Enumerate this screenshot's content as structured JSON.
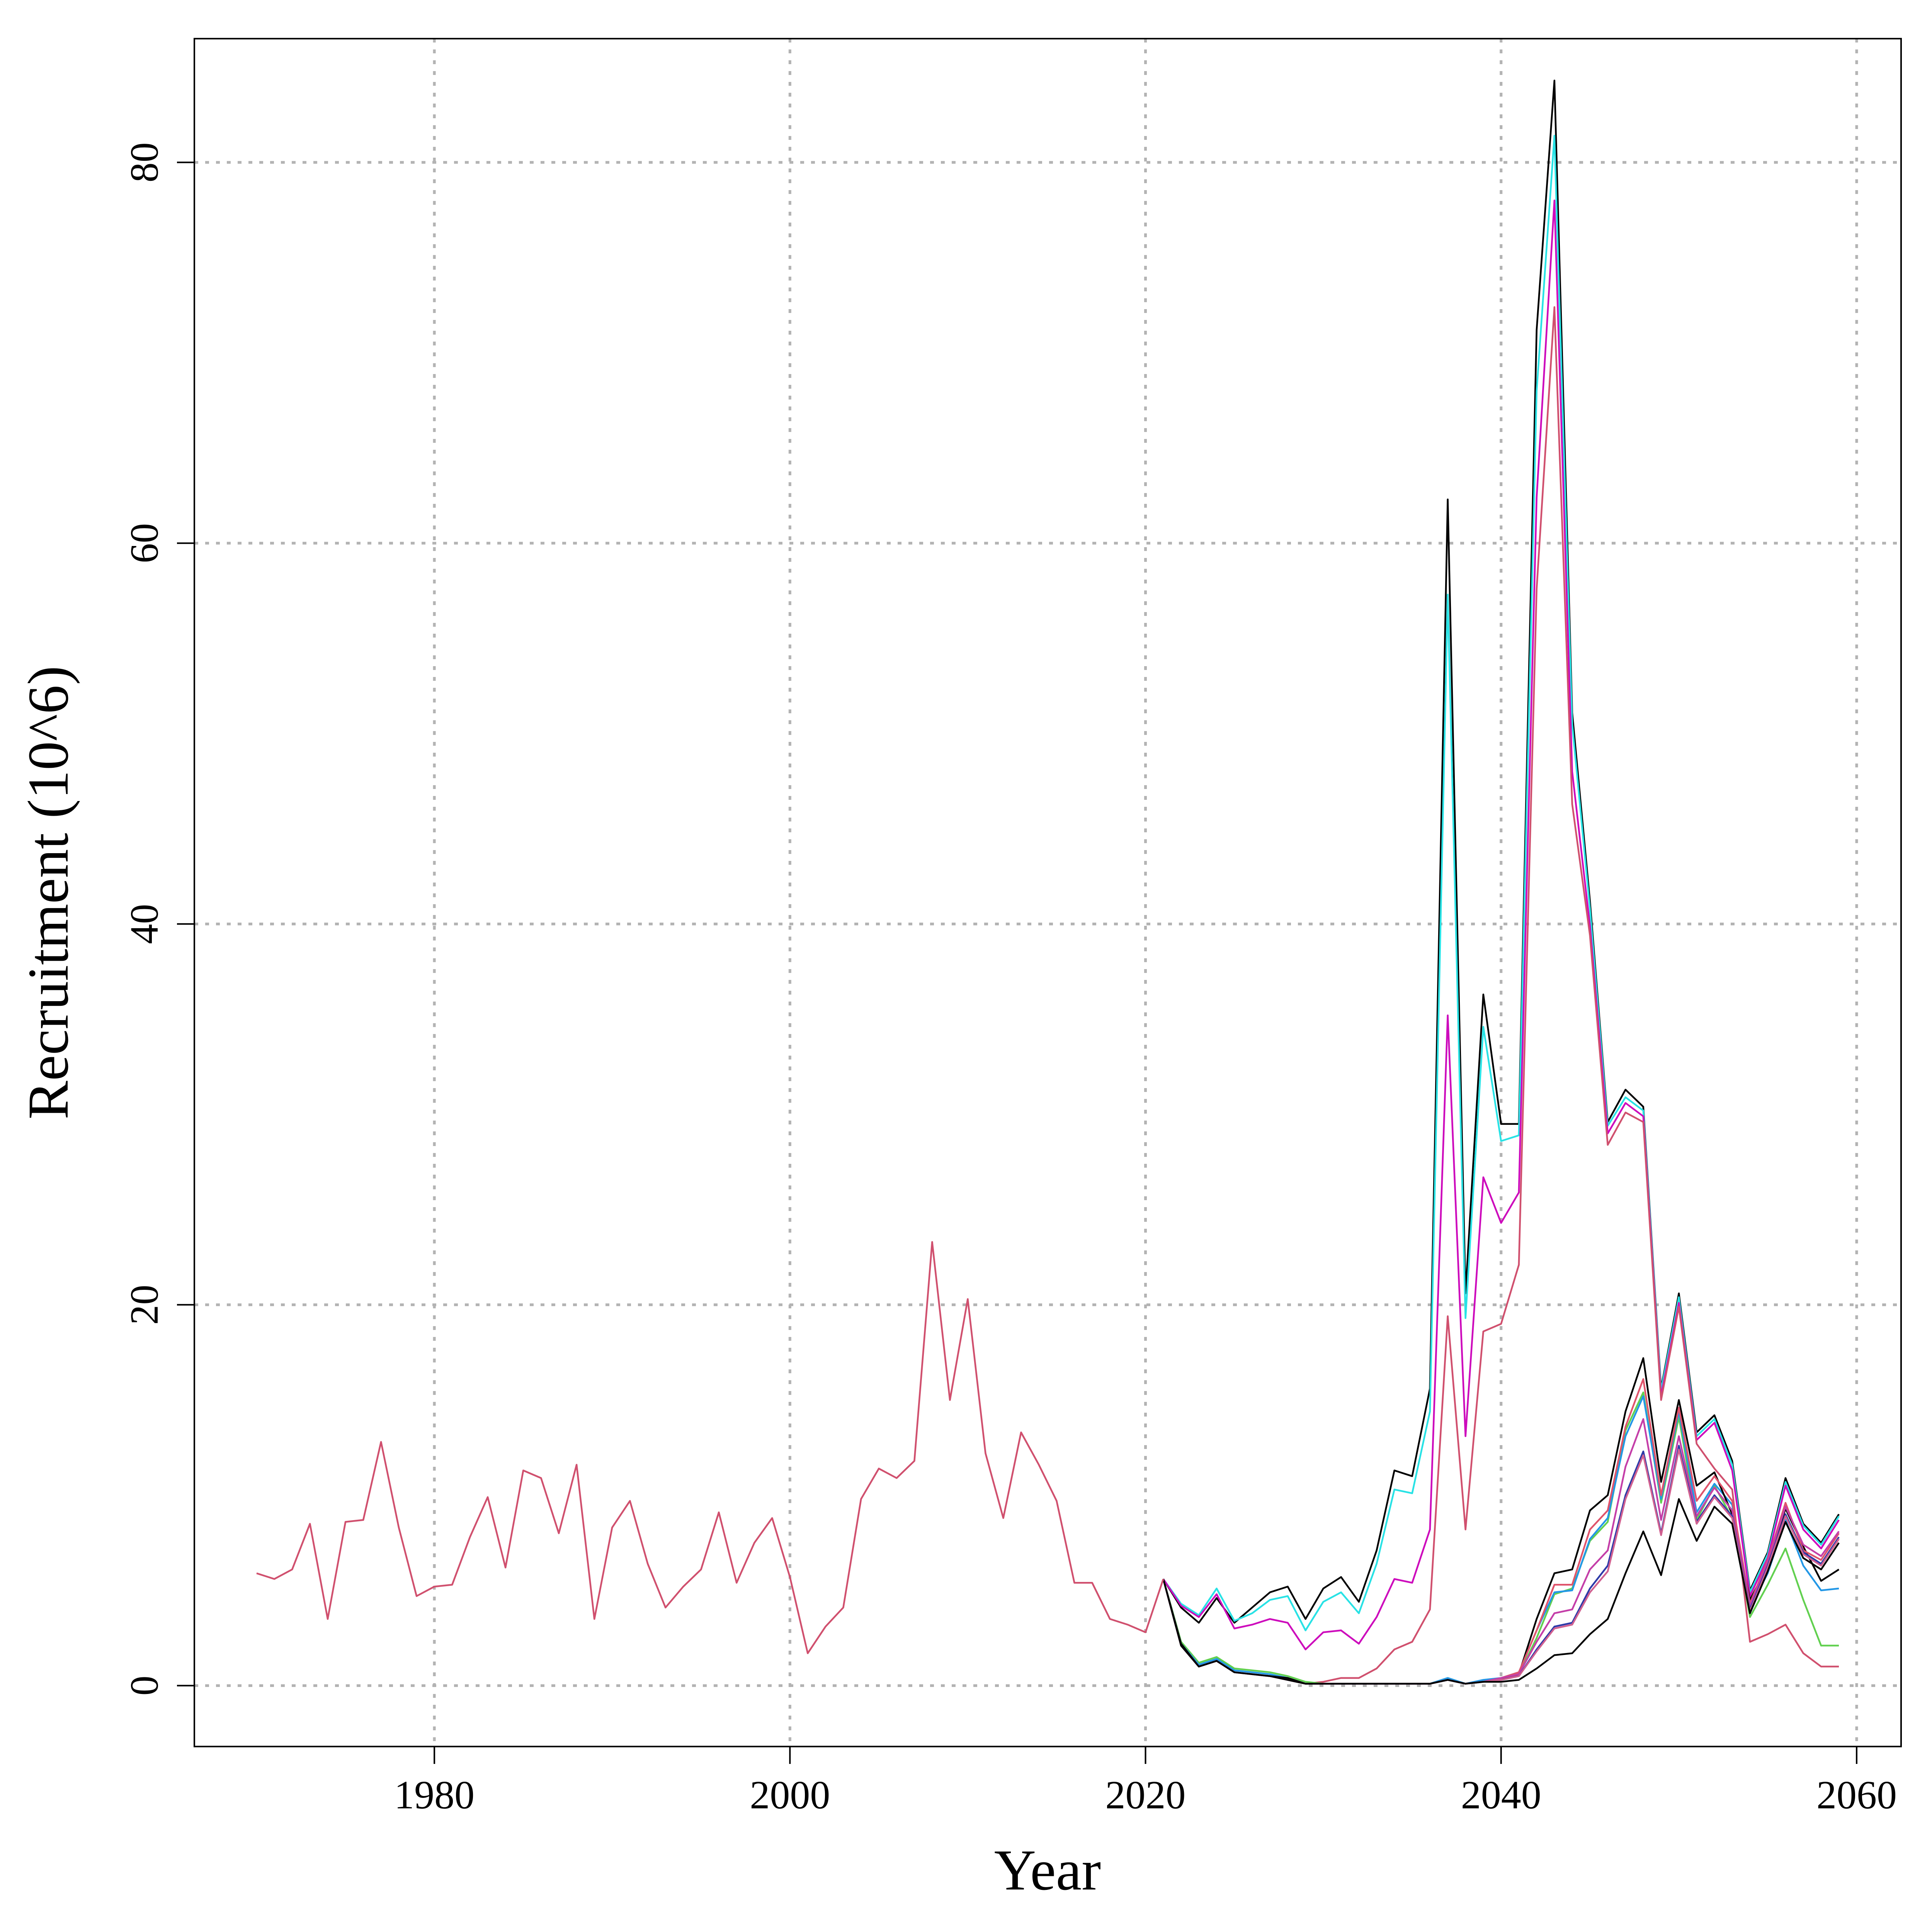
{
  "chart_data": {
    "type": "line",
    "title": "",
    "xlabel": "Year",
    "ylabel": "Recruitment (10^6)",
    "xlim": [
      1966.5,
      2062.5
    ],
    "ylim": [
      -3.2,
      86.5
    ],
    "grid": true,
    "x_ticks": [
      1980,
      2000,
      2020,
      2040,
      2060
    ],
    "y_ticks": [
      0,
      20,
      40,
      60,
      80
    ],
    "historical": {
      "color": "#d0506e",
      "x": [
        1970,
        1971,
        1972,
        1973,
        1974,
        1975,
        1976,
        1977,
        1978,
        1979,
        1980,
        1981,
        1982,
        1983,
        1984,
        1985,
        1986,
        1987,
        1988,
        1989,
        1990,
        1991,
        1992,
        1993,
        1994,
        1995,
        1996,
        1997,
        1998,
        1999,
        2000,
        2001,
        2002,
        2003,
        2004,
        2005,
        2006,
        2007,
        2008,
        2009,
        2010,
        2011,
        2012,
        2013,
        2014,
        2015,
        2016,
        2017,
        2018,
        2019,
        2020,
        2021
      ],
      "values": [
        5.9,
        5.6,
        6.1,
        8.5,
        3.5,
        8.6,
        8.7,
        12.8,
        8.3,
        4.7,
        5.2,
        5.3,
        7.8,
        9.9,
        6.2,
        11.3,
        10.9,
        8.0,
        11.6,
        3.5,
        8.3,
        9.7,
        6.4,
        4.1,
        5.2,
        6.1,
        9.1,
        5.4,
        7.5,
        8.8,
        5.7,
        1.7,
        3.1,
        4.1,
        9.8,
        11.4,
        10.9,
        11.8,
        23.3,
        15.0,
        20.3,
        12.2,
        8.8,
        13.3,
        11.6,
        9.7,
        5.4,
        5.4,
        3.5,
        3.2,
        2.8,
        5.6
      ]
    },
    "projection_x": [
      2021,
      2022,
      2023,
      2024,
      2025,
      2026,
      2027,
      2028,
      2029,
      2030,
      2031,
      2032,
      2033,
      2034,
      2035,
      2036,
      2037,
      2038,
      2039,
      2040,
      2041,
      2042,
      2043,
      2044,
      2045,
      2046,
      2047,
      2048,
      2049,
      2050,
      2051,
      2052,
      2053,
      2054,
      2055,
      2056,
      2057,
      2058,
      2059
    ],
    "series": [
      {
        "color": "#000000",
        "values": [
          5.6,
          4.1,
          3.3,
          4.6,
          3.3,
          4.1,
          4.9,
          5.2,
          3.5,
          5.1,
          5.7,
          4.4,
          7.1,
          11.3,
          11.0,
          15.6,
          62.3,
          20.6,
          36.3,
          29.5,
          29.5,
          71.2,
          84.3,
          51.1,
          41.2,
          29.6,
          31.3,
          30.4,
          15.6,
          20.6,
          13.3,
          14.2,
          11.8,
          5.0,
          7.0,
          10.9,
          8.5,
          7.5,
          9.0
        ]
      },
      {
        "color": "#28e2e5",
        "values": [
          5.6,
          4.3,
          3.7,
          5.1,
          3.4,
          3.8,
          4.5,
          4.7,
          2.9,
          4.4,
          4.9,
          3.8,
          6.4,
          10.3,
          10.1,
          14.4,
          57.3,
          19.3,
          34.6,
          28.6,
          28.9,
          68.0,
          81.4,
          50.5,
          40.8,
          29.4,
          30.9,
          30.2,
          15.5,
          20.4,
          13.1,
          14.0,
          11.6,
          4.9,
          6.9,
          10.7,
          8.4,
          7.4,
          8.9
        ]
      },
      {
        "color": "#cd0bbc",
        "values": [
          5.6,
          4.2,
          3.6,
          4.8,
          3.0,
          3.2,
          3.5,
          3.3,
          1.9,
          2.8,
          2.9,
          2.2,
          3.6,
          5.6,
          5.4,
          8.2,
          35.2,
          13.1,
          26.7,
          24.3,
          25.9,
          62.4,
          78.0,
          48.0,
          39.9,
          29.0,
          30.6,
          29.9,
          15.2,
          20.1,
          12.9,
          13.8,
          11.3,
          4.7,
          6.7,
          10.5,
          8.2,
          7.2,
          8.7
        ]
      },
      {
        "color": "#d0506e",
        "values": [
          5.6,
          2.1,
          1.0,
          1.3,
          0.7,
          0.6,
          0.5,
          0.3,
          0.1,
          0.2,
          0.4,
          0.4,
          0.9,
          1.9,
          2.3,
          4.0,
          19.4,
          8.2,
          18.6,
          19.0,
          22.1,
          57.6,
          72.4,
          46.3,
          39.4,
          28.4,
          30.1,
          29.6,
          15.0,
          19.9,
          12.7,
          11.4,
          10.3,
          2.3,
          2.7,
          3.2,
          1.7,
          1.0,
          1.0
        ]
      },
      {
        "color": "#61d04f",
        "values": [
          5.6,
          2.3,
          1.2,
          1.5,
          0.9,
          0.8,
          0.7,
          0.5,
          0.2,
          0.1,
          0.1,
          0.1,
          0.1,
          0.1,
          0.1,
          0.1,
          0.4,
          0.1,
          0.2,
          0.3,
          0.6,
          2.5,
          4.8,
          5.1,
          7.6,
          8.6,
          13.4,
          15.4,
          9.6,
          14.1,
          8.7,
          10.5,
          8.8,
          3.6,
          5.3,
          7.2,
          4.5,
          2.1,
          2.1
        ]
      },
      {
        "color": "#2297e6",
        "values": [
          5.6,
          2.2,
          1.1,
          1.4,
          0.8,
          0.7,
          0.6,
          0.4,
          0.1,
          0.1,
          0.1,
          0.1,
          0.1,
          0.1,
          0.1,
          0.1,
          0.4,
          0.1,
          0.3,
          0.4,
          0.7,
          2.9,
          4.9,
          5.0,
          7.7,
          8.8,
          13.1,
          15.2,
          9.8,
          14.4,
          9.1,
          10.6,
          9.5,
          4.1,
          5.9,
          8.7,
          6.3,
          5.0,
          5.1
        ]
      },
      {
        "color": "#000000",
        "values": [
          5.6,
          2.2,
          1.0,
          1.3,
          0.7,
          0.6,
          0.5,
          0.4,
          0.1,
          0.1,
          0.1,
          0.1,
          0.1,
          0.1,
          0.1,
          0.1,
          0.3,
          0.1,
          0.2,
          0.3,
          0.6,
          3.5,
          5.9,
          6.1,
          9.2,
          10.0,
          14.4,
          17.2,
          10.7,
          15.0,
          10.5,
          11.2,
          9.0,
          4.5,
          6.3,
          9.3,
          7.3,
          5.5,
          6.1
        ]
      },
      {
        "color": "#df536b",
        "values": [
          5.6,
          2.1,
          1.0,
          1.3,
          0.7,
          0.6,
          0.5,
          0.3,
          0.1,
          0.1,
          0.1,
          0.1,
          0.1,
          0.1,
          0.1,
          0.1,
          0.3,
          0.1,
          0.2,
          0.4,
          0.7,
          2.9,
          5.3,
          5.3,
          8.2,
          9.2,
          13.6,
          16.1,
          10.0,
          14.6,
          9.7,
          11.0,
          9.7,
          4.3,
          6.6,
          9.6,
          7.1,
          6.6,
          8.0
        ]
      },
      {
        "color": "#c43ea8",
        "values": [
          5.6,
          2.1,
          1.0,
          1.3,
          0.7,
          0.6,
          0.5,
          0.3,
          0.1,
          0.1,
          0.1,
          0.1,
          0.1,
          0.1,
          0.1,
          0.1,
          0.3,
          0.1,
          0.2,
          0.4,
          0.6,
          2.3,
          3.8,
          4.0,
          6.1,
          7.1,
          11.5,
          14.0,
          8.7,
          13.1,
          8.9,
          10.4,
          9.2,
          4.2,
          6.5,
          9.4,
          7.4,
          6.8,
          8.1
        ]
      },
      {
        "color": "#2d3aa8",
        "values": [
          5.6,
          2.1,
          1.0,
          1.3,
          0.7,
          0.6,
          0.5,
          0.3,
          0.1,
          0.1,
          0.1,
          0.1,
          0.1,
          0.1,
          0.1,
          0.1,
          0.3,
          0.1,
          0.2,
          0.3,
          0.5,
          1.9,
          3.1,
          3.3,
          5.1,
          6.3,
          10.0,
          12.3,
          8.0,
          12.6,
          8.6,
          10.0,
          8.9,
          4.0,
          6.3,
          9.0,
          7.0,
          6.4,
          7.8
        ]
      },
      {
        "color": "#d06090",
        "values": [
          5.6,
          2.1,
          1.0,
          1.3,
          0.7,
          0.6,
          0.5,
          0.3,
          0.1,
          0.1,
          0.1,
          0.1,
          0.1,
          0.1,
          0.1,
          0.1,
          0.3,
          0.1,
          0.2,
          0.3,
          0.5,
          1.8,
          3.0,
          3.2,
          4.9,
          6.0,
          9.8,
          12.1,
          7.9,
          12.4,
          8.5,
          9.9,
          8.8,
          3.9,
          6.2,
          8.9,
          6.9,
          6.3,
          7.7
        ]
      },
      {
        "color": "#000000",
        "values": [
          5.6,
          2.1,
          1.0,
          1.3,
          0.7,
          0.6,
          0.5,
          0.3,
          0.1,
          0.1,
          0.1,
          0.1,
          0.1,
          0.1,
          0.1,
          0.1,
          0.3,
          0.1,
          0.2,
          0.2,
          0.3,
          0.9,
          1.6,
          1.7,
          2.7,
          3.5,
          5.9,
          8.1,
          5.8,
          9.8,
          7.6,
          9.4,
          8.5,
          3.8,
          6.0,
          8.6,
          6.7,
          6.1,
          7.5
        ]
      }
    ]
  }
}
